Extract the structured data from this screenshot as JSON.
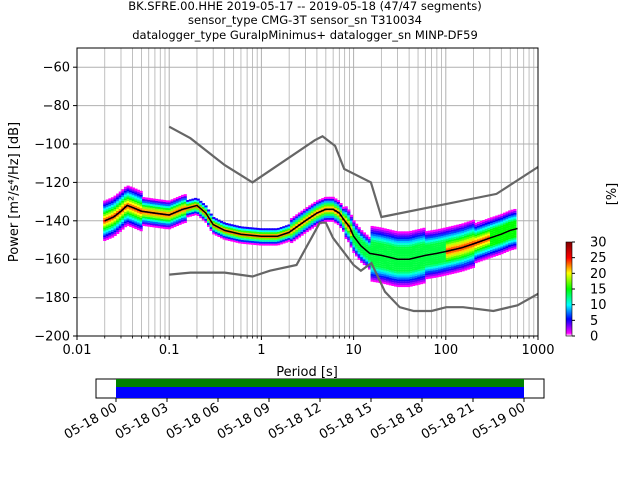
{
  "title_lines": [
    "BK.SFRE.00.HHE   2019-05-17 -- 2019-05-18  (47/47 segments)",
    "sensor_type CMG-3T sensor_sn T310034",
    "datalogger_type GuralpMinimus+ datalogger_sn MINP-DF59"
  ],
  "chart_data": {
    "type": "heatmap",
    "title": "BK.SFRE.00.HHE   2019-05-17 -- 2019-05-18  (47/47 segments)",
    "xlabel": "Period [s]",
    "ylabel": "Power [m²/s⁴/Hz] [dB]",
    "xscale": "log",
    "xlim": [
      0.01,
      1000
    ],
    "ylim": [
      -200,
      -50
    ],
    "x_tick_labels": [
      "0.01",
      "0.1",
      "1",
      "10",
      "100",
      "1000"
    ],
    "y_ticks": [
      -200,
      -180,
      -160,
      -140,
      -120,
      -100,
      -80,
      -60
    ],
    "grid": true,
    "colorbar": {
      "label": "[%]",
      "range": [
        0,
        30
      ],
      "ticks": [
        0,
        5,
        10,
        15,
        20,
        25,
        30
      ]
    },
    "psd_median_curve": [
      [
        0.02,
        -140
      ],
      [
        0.025,
        -138
      ],
      [
        0.03,
        -135
      ],
      [
        0.035,
        -132
      ],
      [
        0.04,
        -133
      ],
      [
        0.05,
        -135
      ],
      [
        0.07,
        -136
      ],
      [
        0.1,
        -137
      ],
      [
        0.14,
        -134
      ],
      [
        0.2,
        -132
      ],
      [
        0.25,
        -136
      ],
      [
        0.3,
        -142
      ],
      [
        0.4,
        -145
      ],
      [
        0.6,
        -147
      ],
      [
        1,
        -148
      ],
      [
        1.5,
        -148
      ],
      [
        2,
        -146
      ],
      [
        3,
        -140
      ],
      [
        4,
        -136
      ],
      [
        5,
        -134
      ],
      [
        6,
        -134
      ],
      [
        7,
        -136
      ],
      [
        8,
        -140
      ],
      [
        9,
        -143
      ],
      [
        10,
        -148
      ],
      [
        12,
        -153
      ],
      [
        15,
        -157
      ],
      [
        20,
        -158
      ],
      [
        30,
        -160
      ],
      [
        40,
        -160
      ],
      [
        60,
        -158
      ],
      [
        80,
        -157
      ],
      [
        100,
        -156
      ],
      [
        150,
        -154
      ],
      [
        200,
        -152
      ],
      [
        300,
        -149
      ],
      [
        400,
        -147
      ],
      [
        500,
        -145
      ],
      [
        600,
        -144
      ]
    ],
    "nhnm_curve": [
      [
        0.1,
        -91
      ],
      [
        0.17,
        -97
      ],
      [
        0.4,
        -111
      ],
      [
        0.8,
        -120
      ],
      [
        3.8,
        -98
      ],
      [
        4.6,
        -96
      ],
      [
        6.3,
        -101
      ],
      [
        7.9,
        -113
      ],
      [
        15.4,
        -120
      ],
      [
        20,
        -138
      ],
      [
        354.8,
        -126
      ],
      [
        1000,
        -112
      ]
    ],
    "nlnm_curve": [
      [
        0.1,
        -168
      ],
      [
        0.17,
        -167
      ],
      [
        0.4,
        -167
      ],
      [
        0.8,
        -169
      ],
      [
        1.24,
        -166
      ],
      [
        2.4,
        -163
      ],
      [
        4.3,
        -141
      ],
      [
        5,
        -141
      ],
      [
        6,
        -149
      ],
      [
        10,
        -163
      ],
      [
        12,
        -166
      ],
      [
        15.6,
        -162
      ],
      [
        21.9,
        -177
      ],
      [
        31.6,
        -185
      ],
      [
        45,
        -187
      ],
      [
        70,
        -187
      ],
      [
        101,
        -185
      ],
      [
        154,
        -185
      ],
      [
        328,
        -187
      ],
      [
        600,
        -184
      ],
      [
        1000,
        -178
      ]
    ],
    "coverage": {
      "tick_labels": [
        "05-18 00",
        "05-18 03",
        "05-18 06",
        "05-18 09",
        "05-18 12",
        "05-18 15",
        "05-18 18",
        "05-18 21",
        "05-19 00"
      ],
      "data_fraction": 1.0,
      "bar_colors": [
        "#008000",
        "#0000ff"
      ]
    },
    "colors": {
      "median": "#000000",
      "noise_models": "#666666",
      "grid": "#b0b0b0"
    }
  }
}
